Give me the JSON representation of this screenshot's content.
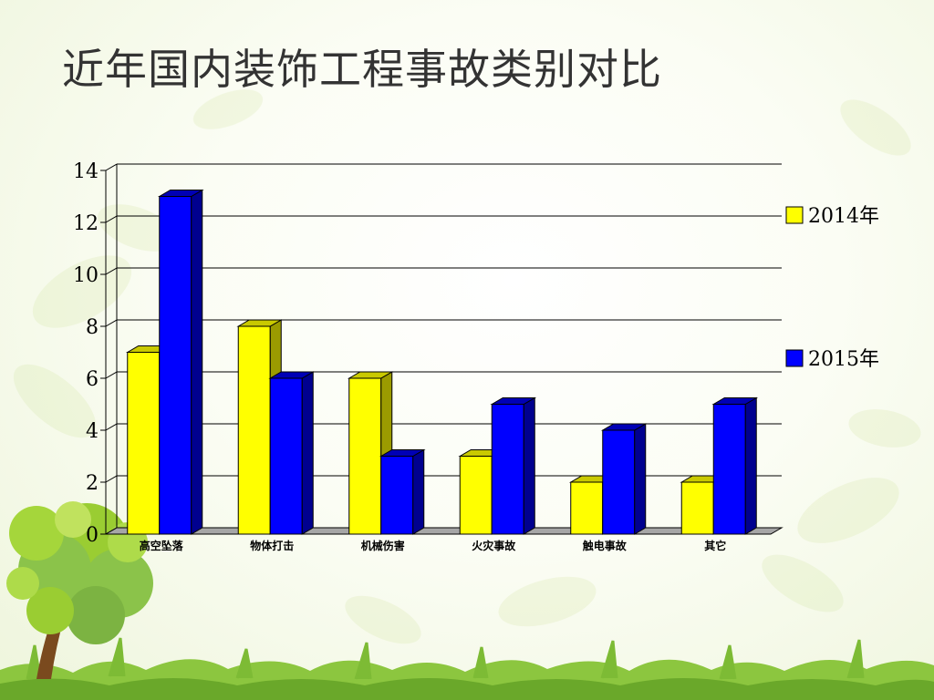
{
  "slide": {
    "title": "近年国内装饰工程事故类别对比"
  },
  "chart_data": {
    "type": "bar",
    "title": "近年国内装饰工程事故类别对比",
    "xlabel": "",
    "ylabel": "",
    "categories": [
      "高空坠落",
      "物体打击",
      "机械伤害",
      "火灾事故",
      "触电事故",
      "其它"
    ],
    "series": [
      {
        "name": "2014年",
        "values": [
          7,
          8,
          6,
          3,
          2,
          2
        ],
        "color": "#FFFF00",
        "side_color": "#9B9B00",
        "top_color": "#C9C900"
      },
      {
        "name": "2015年",
        "values": [
          13,
          6,
          3,
          5,
          4,
          5
        ],
        "color": "#0000FF",
        "side_color": "#00008F",
        "top_color": "#0000B5"
      }
    ],
    "ylim": [
      0,
      14
    ],
    "yticks": [
      0,
      2,
      4,
      6,
      8,
      10,
      12,
      14
    ],
    "grid": true,
    "legend_position": "right",
    "style": "3d-clustered-column"
  }
}
